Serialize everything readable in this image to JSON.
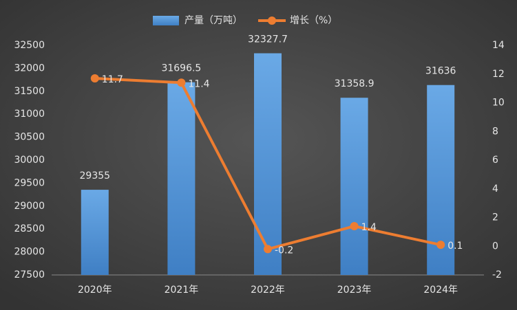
{
  "chart_data": {
    "type": "bar",
    "categories": [
      "2020年",
      "2021年",
      "2022年",
      "2023年",
      "2024年"
    ],
    "series": [
      {
        "name": "产量（万吨）",
        "type": "bar",
        "color": "#5b9bd5",
        "values": [
          29355,
          31696.5,
          32327.7,
          31358.9,
          31636
        ]
      },
      {
        "name": "增长（%）",
        "type": "line",
        "axis": "y2",
        "color": "#ed7d31",
        "values": [
          11.7,
          11.4,
          -0.2,
          1.4,
          0.1
        ]
      }
    ],
    "ylim": [
      27500,
      32500
    ],
    "yticks": [
      27500,
      28000,
      28500,
      29000,
      29500,
      30000,
      30500,
      31000,
      31500,
      32000,
      32500
    ],
    "y2lim": [
      -2,
      14
    ],
    "y2ticks": [
      -2,
      0,
      2,
      4,
      6,
      8,
      10,
      12,
      14
    ],
    "grid": false,
    "legend": "top"
  }
}
